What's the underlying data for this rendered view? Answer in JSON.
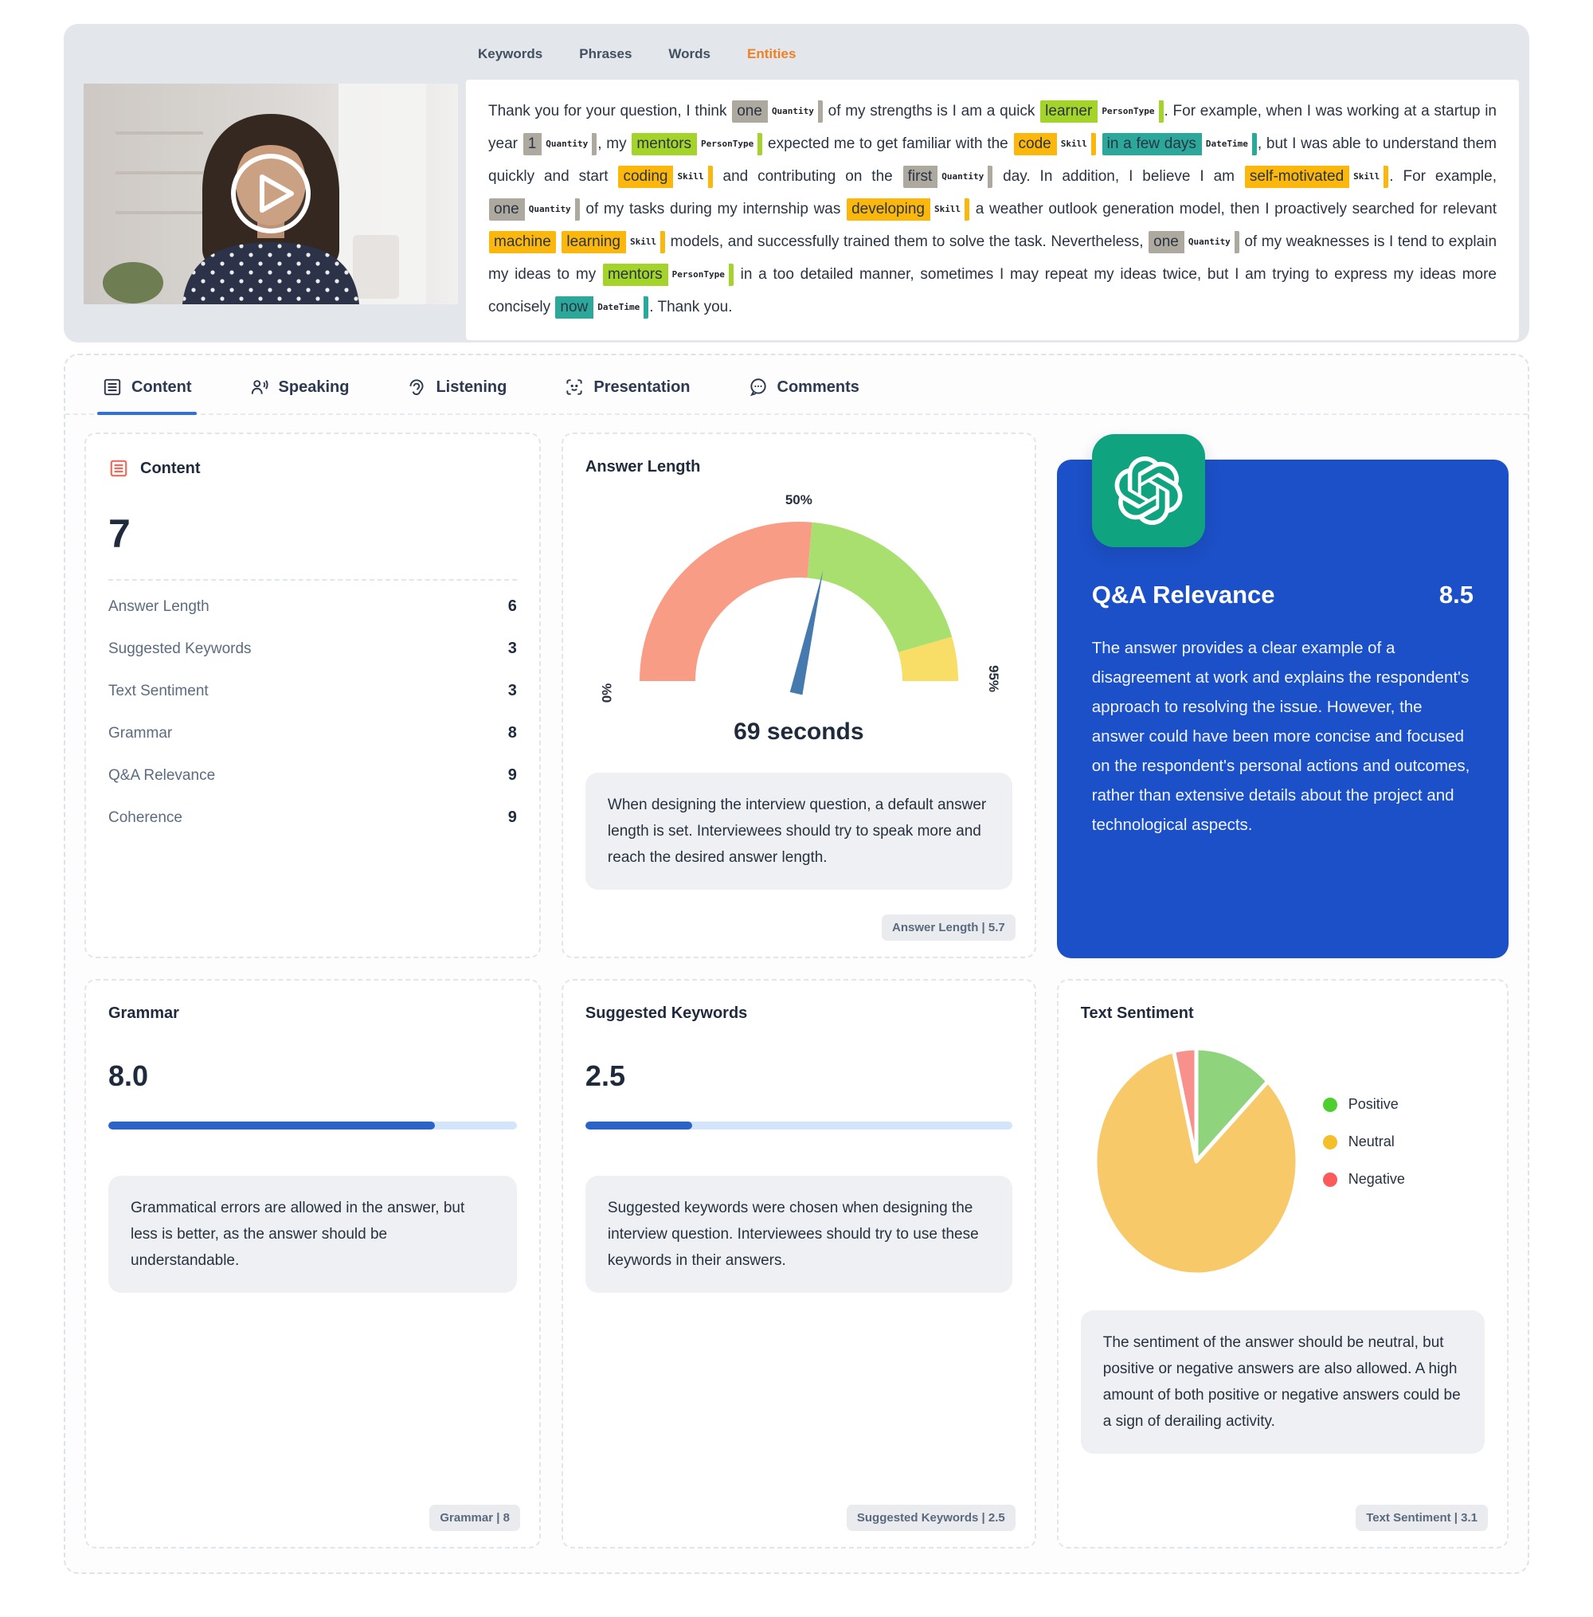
{
  "colors": {
    "accent_blue": "#2c63c7",
    "qa_card_blue": "#1c50c8",
    "openai_green": "#10a37f",
    "active_transcript_tab_orange": "#f08123",
    "header_panel_gray": "#e3e6ea",
    "note_gray": "#eef0f3",
    "content_icon_red": "#f2695c"
  },
  "header": {
    "transcript_tabs": [
      {
        "label": "Keywords",
        "active": false
      },
      {
        "label": "Phrases",
        "active": false
      },
      {
        "label": "Words",
        "active": false
      },
      {
        "label": "Entities",
        "active": true
      }
    ],
    "entity_colors": {
      "Quantity": "#aea99f",
      "PersonType": "#a4d32a",
      "Skill": "#fbb70c",
      "DateTime": "#2ca89b"
    },
    "transcript": {
      "tokens": [
        "Thank you for your question, I think ",
        {
          "t": "one",
          "e": "Quantity"
        },
        " of my strengths is I am a quick ",
        {
          "t": "learner",
          "e": "PersonType"
        },
        ". For example, when I was working at a startup in year ",
        {
          "t": "1",
          "e": "Quantity"
        },
        ", my ",
        {
          "t": "mentors",
          "e": "PersonType"
        },
        " expected me to get familiar with the ",
        {
          "t": "code",
          "e": "Skill"
        },
        " ",
        {
          "t": "in a few days",
          "e": "DateTime"
        },
        ", but I was able to understand them quickly and start ",
        {
          "t": "coding",
          "e": "Skill"
        },
        " and contributing on the ",
        {
          "t": "first",
          "e": "Quantity"
        },
        " day. In addition, I believe I am ",
        {
          "t": "self-motivated",
          "e": "Skill"
        },
        ". For example, ",
        {
          "t": "one",
          "e": "Quantity"
        },
        " of my tasks during my internship was ",
        {
          "t": "developing",
          "e": "Skill"
        },
        " a weather outlook generation model, then I proactively searched for relevant ",
        {
          "t": "machine",
          "e": "Skill",
          "tag": false
        },
        " ",
        {
          "t": "learning",
          "e": "Skill"
        },
        " models, and successfully trained them to solve the task. Nevertheless, ",
        {
          "t": "one",
          "e": "Quantity"
        },
        " of my weaknesses is I tend to explain my ideas to my ",
        {
          "t": "mentors",
          "e": "PersonType"
        },
        " in a too detailed manner, sometimes I may repeat my ideas twice, but I am trying to express my ideas more concisely ",
        {
          "t": "now",
          "e": "DateTime"
        },
        ". Thank you."
      ]
    }
  },
  "tabs": [
    {
      "label": "Content",
      "icon": "content-icon",
      "active": true
    },
    {
      "label": "Speaking",
      "icon": "speaking-icon",
      "active": false
    },
    {
      "label": "Listening",
      "icon": "listening-icon",
      "active": false
    },
    {
      "label": "Presentation",
      "icon": "presentation-icon",
      "active": false
    },
    {
      "label": "Comments",
      "icon": "comments-icon",
      "active": false
    }
  ],
  "cards": {
    "content": {
      "title": "Content",
      "score": "7",
      "rows": [
        {
          "label": "Answer Length",
          "value": "6"
        },
        {
          "label": "Suggested Keywords",
          "value": "3"
        },
        {
          "label": "Text Sentiment",
          "value": "3"
        },
        {
          "label": "Grammar",
          "value": "8"
        },
        {
          "label": "Q&A Relevance",
          "value": "9"
        },
        {
          "label": "Coherence",
          "value": "9"
        }
      ]
    },
    "answer_length": {
      "title": "Answer Length",
      "value_display": "69 seconds",
      "description": "When designing the interview question, a default answer length is set. Interviewees should try to speak more and reach the desired answer length.",
      "badge": "Answer Length | 5.7"
    },
    "qa_relevance": {
      "title": "Q&A Relevance",
      "score": "8.5",
      "description": "The answer provides a clear example of a disagreement at work and explains the respondent's approach to resolving the issue. However, the answer could have been more concise and focused on the respondent's personal actions and outcomes, rather than extensive details about the project and technological aspects."
    },
    "grammar": {
      "title": "Grammar",
      "score": "8.0",
      "progress_pct": 80,
      "description": "Grammatical errors are allowed in the answer, but less is better, as the answer should be understandable.",
      "badge": "Grammar | 8"
    },
    "suggested_keywords": {
      "title": "Suggested Keywords",
      "score": "2.5",
      "progress_pct": 25,
      "description": "Suggested keywords were chosen when designing the interview question. Interviewees should try to use these keywords in their answers.",
      "badge": "Suggested Keywords | 2.5"
    },
    "text_sentiment": {
      "title": "Text Sentiment",
      "description": "The sentiment of the answer should be neutral, but positive or negative answers are also allowed. A high amount of both positive or negative answers could be a sign of derailing activity.",
      "badge": "Text Sentiment | 3.1"
    }
  },
  "chart_data": [
    {
      "type": "gauge",
      "title": "Answer Length",
      "min": 0,
      "max": 95,
      "tick_labels": [
        "0%",
        "50%",
        "95%"
      ],
      "segments": [
        {
          "from": 0,
          "to": 50,
          "color": "#F99C85"
        },
        {
          "from": 50,
          "to": 86.5,
          "color": "#A9DF6F"
        },
        {
          "from": 86.5,
          "to": 95,
          "color": "#F8DE66"
        }
      ],
      "needle_value": 54,
      "needle_color": "#4679AD",
      "value_seconds": 69,
      "value_display": "69 seconds"
    },
    {
      "type": "pie",
      "title": "Text Sentiment",
      "labels": [
        "Positive",
        "Neutral",
        "Negative"
      ],
      "values": [
        12.5,
        83.9,
        3.6
      ],
      "slice_colors": [
        "#8FD47C",
        "#F8C968",
        "#F8918C"
      ],
      "legend_colors": [
        "#4FCE2F",
        "#F4C029",
        "#FB5B5B"
      ],
      "legend_position": "right"
    }
  ]
}
